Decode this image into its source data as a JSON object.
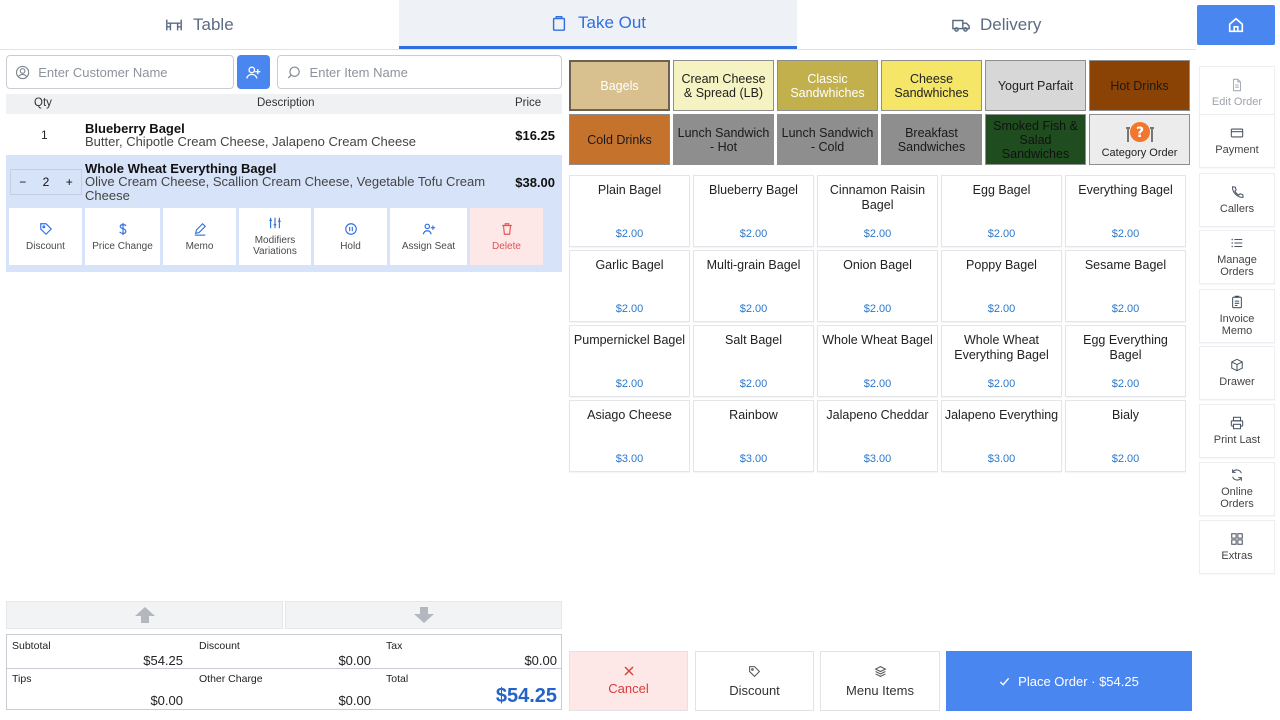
{
  "tabs": [
    {
      "label": "Table",
      "icon": "table-icon"
    },
    {
      "label": "Take Out",
      "icon": "bag-icon",
      "active": true
    },
    {
      "label": "Delivery",
      "icon": "truck-icon"
    }
  ],
  "customer": {
    "placeholder": "Enter Customer Name"
  },
  "item_search": {
    "placeholder": "Enter Item Name"
  },
  "order_header": {
    "qty": "Qty",
    "description": "Description",
    "price": "Price"
  },
  "order_items": [
    {
      "qty": "1",
      "name": "Blueberry Bagel",
      "mods": "Butter, Chipotle Cream Cheese, Jalapeno Cream Cheese",
      "price": "$16.25"
    },
    {
      "qty": "2",
      "name": "Whole Wheat Everything Bagel",
      "mods": "Olive Cream Cheese, Scallion Cream Cheese, Vegetable Tofu Cream Cheese",
      "price": "$38.00",
      "selected": true
    }
  ],
  "stepper": {
    "minus": "−",
    "plus": "+"
  },
  "item_actions": [
    "Discount",
    "Price Change",
    "Memo",
    "Modifiers Variations",
    "Hold",
    "Assign Seat",
    "Delete"
  ],
  "totals": {
    "subtotal_label": "Subtotal",
    "subtotal": "$54.25",
    "discount_label": "Discount",
    "discount": "$0.00",
    "tax_label": "Tax",
    "tax": "$0.00",
    "tips_label": "Tips",
    "tips": "$0.00",
    "other_label": "Other Charge",
    "other": "$0.00",
    "total_label": "Total",
    "total": "$54.25"
  },
  "categories": [
    {
      "label": "Bagels",
      "bg": "#d8c08f",
      "fg": "#ffffff",
      "selected": true
    },
    {
      "label": "Cream Cheese & Spread (LB)",
      "bg": "#f6f3c3",
      "fg": "#222222"
    },
    {
      "label": "Classic Sandwhiches",
      "bg": "#c1b04c",
      "fg": "#ffffff"
    },
    {
      "label": "Cheese Sandwhiches",
      "bg": "#f5e668",
      "fg": "#222222"
    },
    {
      "label": "Yogurt Parfait",
      "bg": "#d7d7d7",
      "fg": "#222222"
    },
    {
      "label": "Hot Drinks",
      "bg": "#8a4304",
      "fg": "#1a1a1a"
    },
    {
      "label": "Cold Drinks",
      "bg": "#c4722c",
      "fg": "#1a1a1a"
    },
    {
      "label": "Lunch Sandwich - Hot",
      "bg": "#8e8e8e",
      "fg": "#1a1a1a"
    },
    {
      "label": "Lunch Sandwich - Cold",
      "bg": "#8e8e8e",
      "fg": "#1a1a1a"
    },
    {
      "label": "Breakfast Sandwiches",
      "bg": "#8e8e8e",
      "fg": "#1a1a1a"
    },
    {
      "label": "Smoked Fish & Salad Sandwiches",
      "bg": "#1f4d1f",
      "fg": "#111111"
    },
    {
      "label": "Category Order",
      "bg": "#ececec",
      "fg": "#222222",
      "icon": true
    }
  ],
  "menu_items": [
    {
      "name": "Plain Bagel",
      "price": "$2.00"
    },
    {
      "name": "Blueberry Bagel",
      "price": "$2.00"
    },
    {
      "name": "Cinnamon Raisin Bagel",
      "price": "$2.00"
    },
    {
      "name": "Egg Bagel",
      "price": "$2.00"
    },
    {
      "name": "Everything Bagel",
      "price": "$2.00"
    },
    {
      "name": "Garlic Bagel",
      "price": "$2.00"
    },
    {
      "name": "Multi-grain Bagel",
      "price": "$2.00"
    },
    {
      "name": "Onion Bagel",
      "price": "$2.00"
    },
    {
      "name": "Poppy Bagel",
      "price": "$2.00"
    },
    {
      "name": "Sesame Bagel",
      "price": "$2.00"
    },
    {
      "name": "Pumpernickel Bagel",
      "price": "$2.00"
    },
    {
      "name": "Salt Bagel",
      "price": "$2.00"
    },
    {
      "name": "Whole Wheat Bagel",
      "price": "$2.00"
    },
    {
      "name": "Whole Wheat Everything Bagel",
      "price": "$2.00"
    },
    {
      "name": "Egg Everything Bagel",
      "price": "$2.00"
    },
    {
      "name": "Asiago Cheese",
      "price": "$3.00"
    },
    {
      "name": "Rainbow",
      "price": "$3.00"
    },
    {
      "name": "Jalapeno Cheddar",
      "price": "$3.00"
    },
    {
      "name": "Jalapeno Everything",
      "price": "$3.00"
    },
    {
      "name": "Bialy",
      "price": "$2.00"
    }
  ],
  "bottom": {
    "cancel": "Cancel",
    "discount": "Discount",
    "menu_items": "Menu Items",
    "place_order": "Place Order · $54.25"
  },
  "sidebar": [
    {
      "label": "Edit Order",
      "icon": "document-icon",
      "disabled": true
    },
    {
      "label": "Payment",
      "icon": "card-icon"
    },
    {
      "label": "Callers",
      "icon": "phone-icon"
    },
    {
      "label": "Manage Orders",
      "icon": "list-icon"
    },
    {
      "label": "Invoice Memo",
      "icon": "clipboard-icon"
    },
    {
      "label": "Drawer",
      "icon": "box-icon"
    },
    {
      "label": "Print Last",
      "icon": "printer-icon"
    },
    {
      "label": "Online Orders",
      "icon": "refresh-icon"
    },
    {
      "label": "Extras",
      "icon": "grid-icon"
    }
  ],
  "colors": {
    "accent": "#4a86ef",
    "selected_row": "#d7e3f8",
    "price": "#2c78c9",
    "delete": "#e05454"
  }
}
